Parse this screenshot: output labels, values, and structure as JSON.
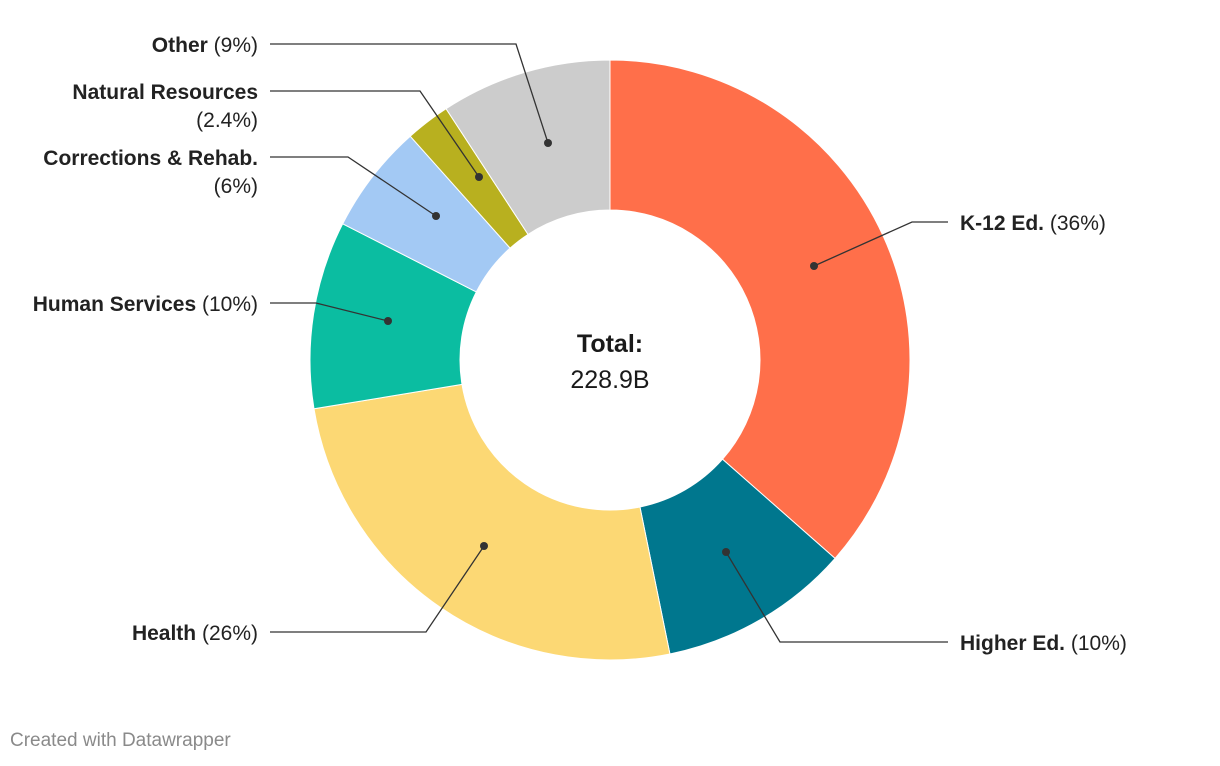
{
  "chart_data": {
    "type": "pie",
    "variant": "donut",
    "start": "top",
    "direction": "clockwise",
    "center_label": {
      "title": "Total:",
      "value": "228.9B"
    },
    "slices": [
      {
        "name": "K-12 Ed.",
        "pct_label": "(36%)",
        "value": 36.5,
        "color": "#ff6f4a"
      },
      {
        "name": "Higher Ed.",
        "pct_label": "(10%)",
        "value": 10.3,
        "color": "#00778e"
      },
      {
        "name": "Health",
        "pct_label": "(26%)",
        "value": 25.6,
        "color": "#fcd874"
      },
      {
        "name": "Human Services",
        "pct_label": "(10%)",
        "value": 10.1,
        "color": "#0bbda1"
      },
      {
        "name": "Corrections & Rehab.",
        "pct_label": "(6%)",
        "value": 5.9,
        "color": "#a3c9f4"
      },
      {
        "name": "Natural Resources",
        "pct_label": "(2.4%)",
        "value": 2.4,
        "color": "#b8b01f"
      },
      {
        "name": "Other",
        "pct_label": "(9%)",
        "value": 9.2,
        "color": "#cccccc"
      }
    ]
  },
  "footer": {
    "credit": "Created with Datawrapper"
  }
}
